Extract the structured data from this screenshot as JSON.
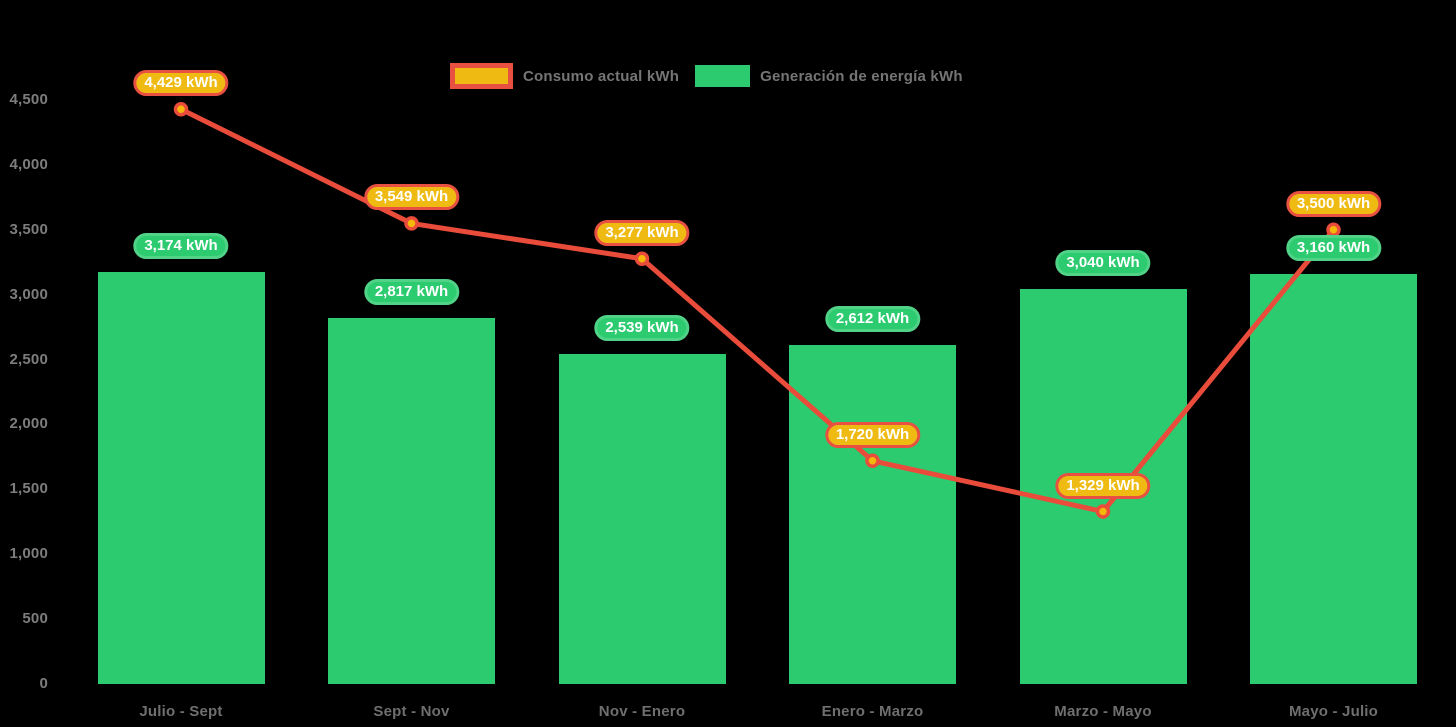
{
  "legend": {
    "items": [
      {
        "label": "Consumo actual kWh",
        "swatch_type": "line",
        "swatch_fill": "#efbb13",
        "swatch_border": "#e85142"
      },
      {
        "label": "Generación de energía kWh",
        "swatch_type": "bar",
        "swatch_fill": "#2dcb70",
        "swatch_border": ""
      }
    ]
  },
  "chart_data": {
    "type": "bar+line combo",
    "title": "",
    "categories": [
      "Julio - Sept",
      "Sept - Nov",
      "Nov - Enero",
      "Enero - Marzo",
      "Marzo - Mayo",
      "Mayo - Julio"
    ],
    "series": [
      {
        "name": "Generación de energía kWh",
        "type": "bar",
        "color": "#2dcb70",
        "values": [
          3174,
          2817,
          2539,
          2612,
          3040,
          3160
        ],
        "point_labels": [
          "3,174 kWh",
          "2,817 kWh",
          "2,539 kWh",
          "2,612 kWh",
          "3,040 kWh",
          "3,160 kWh"
        ]
      },
      {
        "name": "Consumo actual kWh",
        "type": "line",
        "color": "#e94c3b",
        "marker_fill": "#f5b70a",
        "values": [
          4429,
          3549,
          3277,
          1720,
          1329,
          3500
        ],
        "point_labels": [
          "4,429 kWh",
          "3,549 kWh",
          "3,277 kWh",
          "1,720 kWh",
          "1,329 kWh",
          "3,500 kWh"
        ]
      }
    ],
    "ylim": [
      0,
      4500
    ],
    "ytick_step": 500,
    "ytick_labels": [
      "0",
      "500",
      "1,000",
      "1,500",
      "2,000",
      "2,500",
      "3,000",
      "3,500",
      "4,000",
      "4,500"
    ],
    "grid": false,
    "legend_position": "top"
  },
  "colors": {
    "background": "#000000",
    "bar": "#2dcb70",
    "bar_badge_fill": "#2dcb70",
    "bar_badge_border": "#50d287",
    "line": "#e94c3b",
    "marker_fill": "#f5b70a",
    "line_badge_fill": "#efbb13",
    "line_badge_border": "#e85142",
    "axis_text": "#7d7d7d",
    "badge_text": "#ffffff"
  }
}
